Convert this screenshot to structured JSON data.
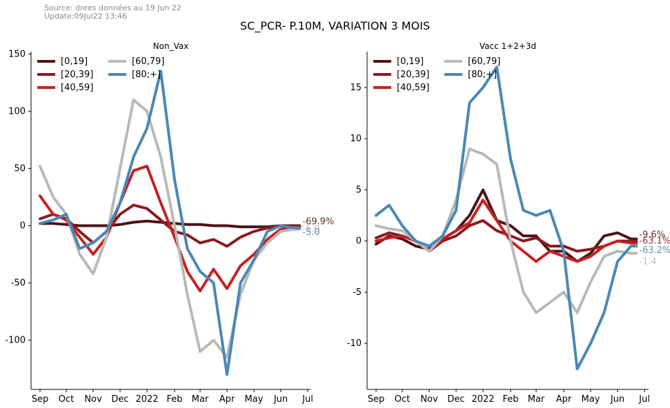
{
  "source_line1": "Source: drees données au 19 Jun 22",
  "source_line2": "Update:09Jul22 13:46",
  "suptitle": "SC_PCR- P.10M, VARIATION 3 MOIS",
  "colors": {
    "[0,19]": "#4d1418",
    "[20,39]": "#8b1a1f",
    "[40,59]": "#c42222",
    "[60,79]": "#b9b9b9",
    "[80;+]": "#4a88b5"
  },
  "chart_data": [
    {
      "type": "line",
      "title": "Non_Vax",
      "x_tick_labels": [
        "Sep",
        "Oct",
        "Nov",
        "Dec",
        "2022",
        "Feb",
        "Mar",
        "Apr",
        "May",
        "Jun",
        "Jul"
      ],
      "y_ticks": [
        150,
        100,
        50,
        0,
        -50,
        -100
      ],
      "y_tick_labels": [
        "150",
        "100",
        "50",
        "0",
        "-50",
        "-100"
      ],
      "ylim": [
        -143,
        152
      ],
      "legend": [
        "[0,19]",
        "[20,39]",
        "[40,59]",
        "[60,79]",
        "[80;+]"
      ],
      "legend_placement": "top-left",
      "x": [
        0,
        0.5,
        1,
        1.5,
        2,
        2.5,
        3,
        3.5,
        4,
        4.5,
        5,
        5.5,
        6,
        6.5,
        7,
        7.5,
        8,
        8.5,
        9,
        9.5,
        9.7
      ],
      "series": [
        {
          "name": "[0,19]",
          "values": [
            2,
            2,
            1,
            0,
            0,
            0,
            1,
            3,
            4,
            3,
            2,
            1,
            1,
            0,
            0,
            -1,
            -1,
            -1,
            0,
            0,
            0
          ]
        },
        {
          "name": "[20,39]",
          "values": [
            6,
            10,
            6,
            -5,
            -15,
            -5,
            10,
            18,
            15,
            5,
            -5,
            -8,
            -15,
            -12,
            -18,
            -10,
            -5,
            -2,
            0,
            -1,
            -1
          ]
        },
        {
          "name": "[40,59]",
          "values": [
            26,
            10,
            5,
            -10,
            -25,
            -10,
            20,
            48,
            52,
            20,
            -10,
            -40,
            -57,
            -38,
            -55,
            -35,
            -25,
            -12,
            -3,
            -1,
            -1
          ]
        },
        {
          "name": "[60,79]",
          "values": [
            52,
            25,
            10,
            -25,
            -42,
            -10,
            50,
            110,
            100,
            60,
            0,
            -60,
            -110,
            -100,
            -115,
            -60,
            -30,
            -15,
            -5,
            -3,
            -3
          ]
        },
        {
          "name": "[80;+]",
          "values": [
            2,
            5,
            10,
            -20,
            -15,
            -5,
            20,
            60,
            85,
            135,
            40,
            -20,
            -40,
            -50,
            -130,
            -50,
            -30,
            -5,
            0,
            -2,
            -2
          ]
        }
      ],
      "end_labels": [
        {
          "text": "-69.9%",
          "series": "[0,19]"
        },
        {
          "text": "-5.0",
          "series": "[60,79]"
        },
        {
          "text": "-5.0",
          "series": "[80;+]"
        }
      ]
    },
    {
      "type": "line",
      "title": "Vacc 1+2+3d",
      "x_tick_labels": [
        "Sep",
        "Oct",
        "Nov",
        "Dec",
        "2022",
        "Feb",
        "Mar",
        "Apr",
        "May",
        "Jun",
        "Jul"
      ],
      "y_ticks": [
        15,
        10,
        5,
        0,
        -5,
        -10
      ],
      "y_tick_labels": [
        "15",
        "10",
        "5",
        "0",
        "-5",
        "-10"
      ],
      "ylim": [
        -14.5,
        18.5
      ],
      "legend": [
        "[0,19]",
        "[20,39]",
        "[40,59]",
        "[60,79]",
        "[80;+]"
      ],
      "legend_placement": "top-left",
      "x": [
        0,
        0.5,
        1,
        1.5,
        2,
        2.5,
        3,
        3.5,
        4,
        4.5,
        5,
        5.5,
        6,
        6.5,
        7,
        7.5,
        8,
        8.5,
        9,
        9.5,
        9.7
      ],
      "series": [
        {
          "name": "[0,19]",
          "values": [
            -0.3,
            0.5,
            0.2,
            -0.5,
            -0.8,
            0.2,
            1.0,
            2.5,
            5.0,
            2.0,
            1.5,
            0.5,
            0.5,
            -1.0,
            -1.0,
            -2.0,
            -1.2,
            0.5,
            0.8,
            0.2,
            0.2
          ]
        },
        {
          "name": "[20,39]",
          "values": [
            0.3,
            0.8,
            0.5,
            0,
            -1.0,
            0,
            0.5,
            1.5,
            2.0,
            1.0,
            0.5,
            0,
            0.3,
            -0.5,
            -0.5,
            -1.0,
            -0.8,
            -0.5,
            0,
            0,
            0
          ]
        },
        {
          "name": "[40,59]",
          "values": [
            0,
            0.3,
            0.5,
            0,
            -1.0,
            0.2,
            1.0,
            1.8,
            4.0,
            2.0,
            0,
            -1.0,
            -2.0,
            -1.0,
            -1.5,
            -2.0,
            -1.5,
            -0.5,
            0,
            -0.2,
            -0.2
          ]
        },
        {
          "name": "[60,79]",
          "values": [
            1.5,
            1.2,
            1.0,
            0,
            -1.0,
            0.5,
            4.0,
            9.0,
            8.5,
            7.5,
            0,
            -5.0,
            -7.0,
            -6.0,
            -5.0,
            -7.0,
            -4.0,
            -1.5,
            -1.0,
            -1.2,
            -1.2
          ]
        },
        {
          "name": "[80;+]",
          "values": [
            2.5,
            3.5,
            1.5,
            0,
            -0.5,
            0.5,
            3.0,
            13.5,
            15.0,
            17.0,
            8.0,
            3.0,
            2.5,
            3.0,
            -1.0,
            -12.5,
            -10.0,
            -7.0,
            -2.0,
            -0.5,
            -0.5
          ]
        }
      ],
      "end_labels": [
        {
          "text": "-9.6%",
          "series": "[0,19]"
        },
        {
          "text": "-63.1%",
          "series": "[20,39]"
        },
        {
          "text": "-63.2%",
          "series": "[80;+]"
        },
        {
          "text": "-1.4",
          "series": "[60,79]"
        }
      ]
    }
  ]
}
